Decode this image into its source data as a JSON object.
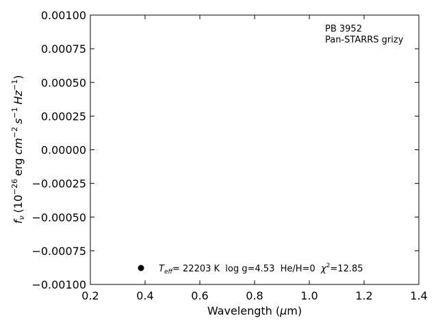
{
  "chart_data": {
    "type": "scatter",
    "xlabel": "Wavelength",
    "xlabel_unit_sym": "μ",
    "xlabel_unit_rest": "m",
    "ylabel_f": "f",
    "ylabel_sub": "ν",
    "ylabel_open": "(10",
    "ylabel_exp1": "−26",
    "ylabel_erg": "erg",
    "ylabel_cm": "cm",
    "ylabel_exp2": "−2",
    "ylabel_s": "s",
    "ylabel_exp3": "−1",
    "ylabel_hz": "Hz",
    "ylabel_exp4": "−1",
    "ylabel_close": ")",
    "xlim": [
      0.2,
      1.4
    ],
    "ylim": [
      -0.001,
      0.001
    ],
    "x_ticks": [
      0.2,
      0.4,
      0.6,
      0.8,
      1.0,
      1.2,
      1.4
    ],
    "x_tick_labels": [
      "0.2",
      "0.4",
      "0.6",
      "0.8",
      "1.0",
      "1.2",
      "1.4"
    ],
    "y_ticks": [
      -0.001,
      -0.00075,
      -0.0005,
      -0.00025,
      0,
      0.00025,
      0.0005,
      0.00075,
      0.001
    ],
    "y_tick_labels": [
      "−0.00100",
      "−0.00075",
      "−0.00050",
      "−0.00025",
      "0.00000",
      "0.00025",
      "0.00050",
      "0.00075",
      "0.00100"
    ],
    "grid": false,
    "annotations": {
      "object_name": "PB 3952",
      "survey": "Pan-STARRS grizy"
    },
    "legend": {
      "position": "bottom",
      "marker_color": "#000000",
      "teff_T": "T",
      "teff_sub": "eff",
      "teff_text": "= 22203 K  log g=4.53  He/H=0  ",
      "chi_sym": "χ",
      "chi_sup": "2",
      "chi_text": "=12.85"
    },
    "series": []
  }
}
